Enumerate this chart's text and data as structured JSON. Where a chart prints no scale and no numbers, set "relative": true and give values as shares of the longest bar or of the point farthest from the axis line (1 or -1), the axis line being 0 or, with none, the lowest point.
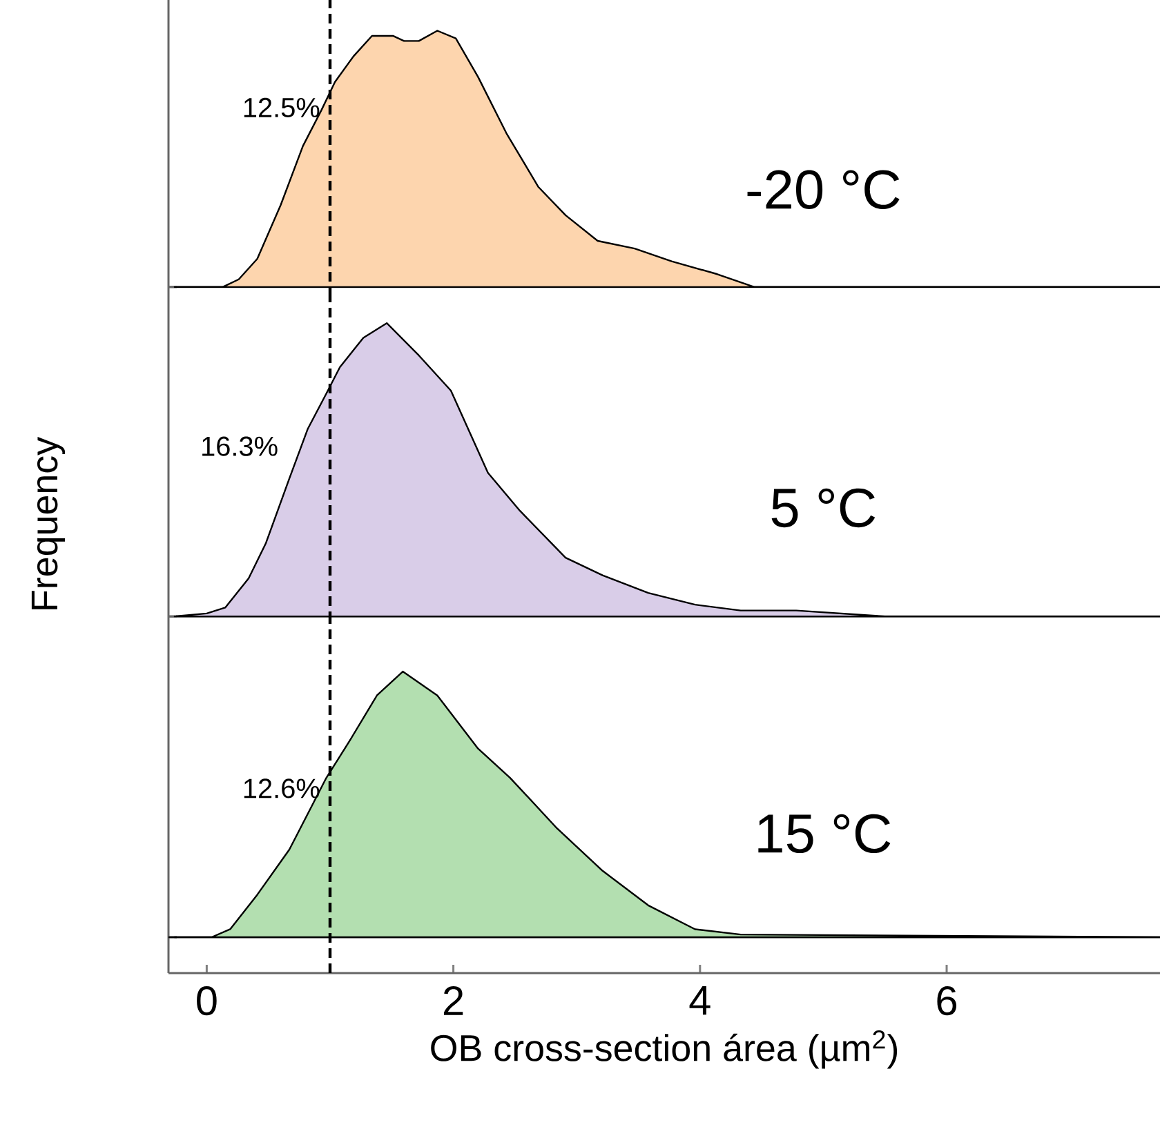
{
  "chart_data": [
    {
      "type": "area",
      "relative": true,
      "xlim": [
        -0.31,
        7.73
      ],
      "tick_labels": false,
      "x": [
        -0.26,
        0.13,
        0.26,
        0.41,
        0.6,
        0.78,
        0.93,
        1.04,
        1.19,
        1.34,
        1.51,
        1.6,
        1.72,
        1.87,
        2.02,
        2.2,
        2.43,
        2.69,
        2.91,
        3.17,
        3.47,
        3.77,
        4.14,
        4.44,
        7.73
      ],
      "series": [
        {
          "name": "-20 °C",
          "color": "#fdd5ae",
          "values": [
            0,
            0,
            0.03,
            0.11,
            0.32,
            0.55,
            0.69,
            0.8,
            0.9,
            0.98,
            0.98,
            0.96,
            0.96,
            1,
            0.97,
            0.82,
            0.6,
            0.39,
            0.28,
            0.18,
            0.15,
            0.1,
            0.05,
            0,
            0
          ]
        }
      ],
      "ref_lines": [
        {
          "axis": "x",
          "value": 1,
          "line_style": "dashed",
          "color": "#000000"
        }
      ],
      "annotations": [
        "12.5%"
      ]
    },
    {
      "type": "area",
      "relative": true,
      "xlim": [
        -0.31,
        7.73
      ],
      "tick_labels": false,
      "ylabel": "Frequency",
      "x": [
        -0.26,
        0,
        0.15,
        0.34,
        0.48,
        0.67,
        0.82,
        0.97,
        1.08,
        1.27,
        1.46,
        1.72,
        1.98,
        2.28,
        2.54,
        2.91,
        3.21,
        3.58,
        3.96,
        4.33,
        4.78,
        5.5,
        7.73
      ],
      "series": [
        {
          "name": "5 °C",
          "color": "#d9cde8",
          "values": [
            0,
            0.01,
            0.03,
            0.13,
            0.25,
            0.47,
            0.64,
            0.76,
            0.85,
            0.95,
            1,
            0.89,
            0.77,
            0.49,
            0.36,
            0.2,
            0.14,
            0.08,
            0.04,
            0.02,
            0.02,
            0,
            0
          ]
        }
      ],
      "ref_lines": [
        {
          "axis": "x",
          "value": 1,
          "line_style": "dashed",
          "color": "#000000"
        }
      ],
      "annotations": [
        "16.3%"
      ]
    },
    {
      "type": "area",
      "relative": true,
      "xlim": [
        -0.31,
        7.73
      ],
      "xticks": [
        0,
        2,
        4,
        6
      ],
      "tick_labels": "x",
      "xlabel": "OB cross-section área (µm$^{2}$)",
      "x": [
        -0.26,
        0.04,
        0.19,
        0.41,
        0.67,
        0.97,
        1.16,
        1.38,
        1.59,
        1.87,
        2.2,
        2.46,
        2.84,
        3.21,
        3.58,
        3.96,
        4.33,
        7.73
      ],
      "series": [
        {
          "name": "15 °C",
          "color": "#b3dfb0",
          "values": [
            0,
            0,
            0.03,
            0.16,
            0.33,
            0.6,
            0.74,
            0.91,
            1,
            0.91,
            0.71,
            0.6,
            0.41,
            0.25,
            0.12,
            0.03,
            0.01,
            0
          ]
        }
      ],
      "ref_lines": [
        {
          "axis": "x",
          "value": 1,
          "line_style": "dashed",
          "color": "#000000"
        }
      ],
      "annotations": [
        "12.6%"
      ]
    }
  ]
}
